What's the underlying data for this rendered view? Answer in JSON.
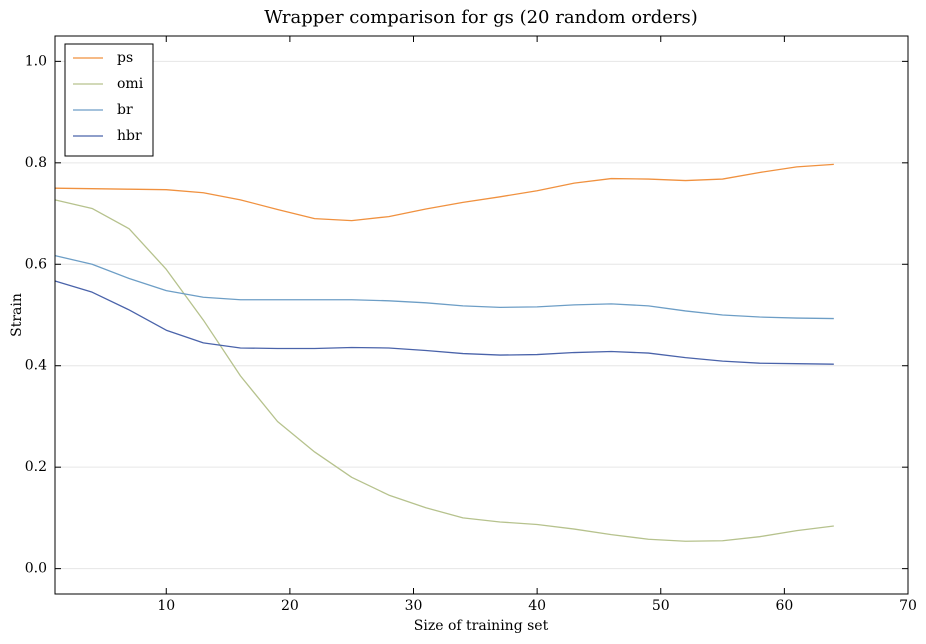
{
  "chart_data": {
    "type": "line",
    "title": "Wrapper comparison for gs (20 random orders)",
    "x_label": "Size of training set",
    "y_label": "Strain",
    "x": [
      1,
      4,
      7,
      10,
      13,
      16,
      19,
      22,
      25,
      28,
      31,
      34,
      37,
      40,
      43,
      46,
      49,
      52,
      55,
      58,
      61,
      64
    ],
    "series": [
      {
        "name": "ps",
        "color": "#f0913f",
        "values": [
          0.75,
          0.749,
          0.748,
          0.747,
          0.741,
          0.727,
          0.708,
          0.69,
          0.686,
          0.694,
          0.709,
          0.722,
          0.733,
          0.745,
          0.76,
          0.769,
          0.768,
          0.765,
          0.768,
          0.781,
          0.792,
          0.797
        ]
      },
      {
        "name": "omi",
        "color": "#b6c28d",
        "values": [
          0.727,
          0.71,
          0.67,
          0.59,
          0.49,
          0.38,
          0.29,
          0.23,
          0.18,
          0.145,
          0.12,
          0.1,
          0.092,
          0.087,
          0.078,
          0.067,
          0.058,
          0.054,
          0.055,
          0.063,
          0.075,
          0.084
        ]
      },
      {
        "name": "br",
        "color": "#6d9ec6",
        "values": [
          0.617,
          0.6,
          0.572,
          0.548,
          0.535,
          0.53,
          0.53,
          0.53,
          0.53,
          0.528,
          0.524,
          0.518,
          0.515,
          0.516,
          0.52,
          0.522,
          0.518,
          0.508,
          0.5,
          0.496,
          0.494,
          0.493
        ]
      },
      {
        "name": "hbr",
        "color": "#4a63aa",
        "values": [
          0.567,
          0.545,
          0.51,
          0.47,
          0.445,
          0.435,
          0.434,
          0.434,
          0.436,
          0.435,
          0.43,
          0.424,
          0.421,
          0.422,
          0.426,
          0.428,
          0.425,
          0.416,
          0.409,
          0.405,
          0.404,
          0.403
        ]
      }
    ],
    "xlim": [
      1,
      70
    ],
    "xticks": [
      10,
      20,
      30,
      40,
      50,
      60,
      70
    ],
    "ylim": [
      -0.05,
      1.05
    ],
    "yticks": [
      {
        "value": 0,
        "label": "0.0"
      },
      0.2,
      0.4,
      0.6,
      0.8,
      {
        "value": 1,
        "label": "1.0"
      }
    ],
    "grid": true,
    "legend": "upper left"
  }
}
